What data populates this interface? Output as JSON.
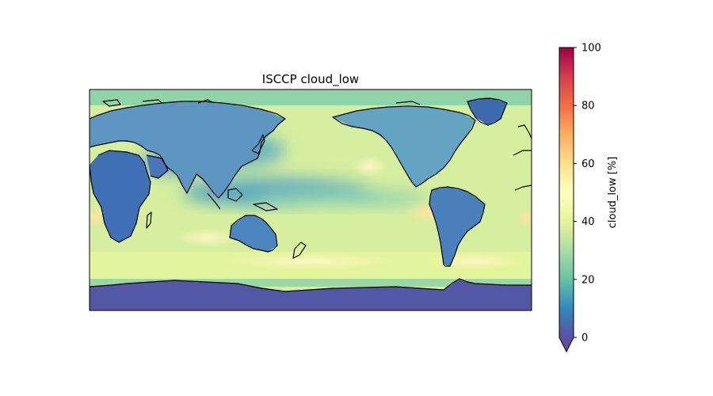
{
  "map": {
    "title": "ISCCP cloud_low",
    "projection": "PlateCarree",
    "central_longitude": 180,
    "colormap": "Spectral_r",
    "coastline_color": "#000000"
  },
  "colorbar": {
    "label": "cloud_low [%]",
    "range": [
      0,
      100
    ],
    "extend": "min",
    "ticks": [
      {
        "value": 0,
        "label": "0"
      },
      {
        "value": 20,
        "label": "20"
      },
      {
        "value": 40,
        "label": "40"
      },
      {
        "value": 60,
        "label": "60"
      },
      {
        "value": 80,
        "label": "80"
      },
      {
        "value": 100,
        "label": "100"
      }
    ],
    "colors": [
      "#5e4fa2",
      "#3288bd",
      "#66c2a5",
      "#abdda4",
      "#e6f598",
      "#ffffbf",
      "#fee08b",
      "#fdae61",
      "#f46d43",
      "#d53e4f",
      "#9e0142"
    ]
  }
}
